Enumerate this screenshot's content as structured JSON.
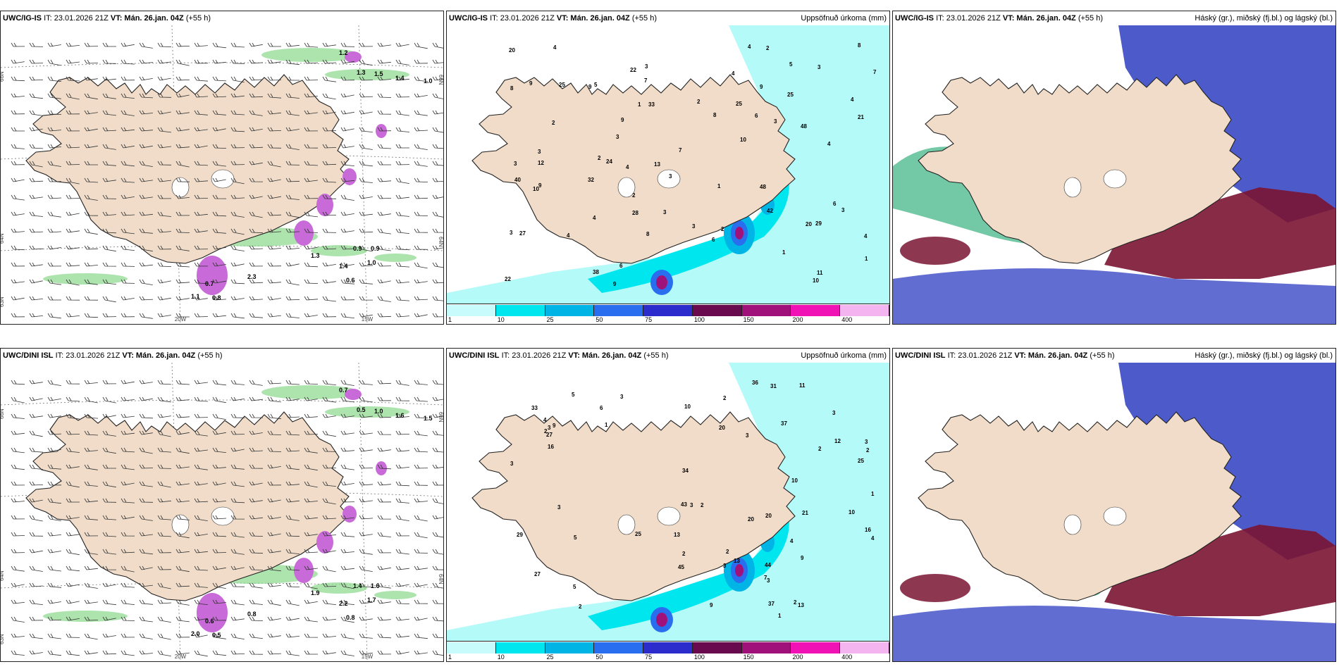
{
  "rows": [
    {
      "model": "UWC/IG-IS",
      "it_label": "IT: 23.01.2026 21Z",
      "vt_label": "VT: Mán. 26.jan. 04Z",
      "lead": "(+55 h)",
      "panels": {
        "wind": {
          "lat_labels": [
            "66N",
            "64N",
            "63N"
          ],
          "lat_labels_right": [
            "66N",
            "64N"
          ],
          "lon_labels": [
            "20W",
            "15W"
          ],
          "values": [
            "1.2",
            "1.3",
            "1.5",
            "1.4",
            "1.0",
            "0.9",
            "0.9",
            "1.0",
            "1.3",
            "1.4",
            "0.6",
            "0.8",
            "0.7",
            "2.3",
            "1.1"
          ]
        },
        "precip": {
          "title": "Uppsöfnuð úrkoma (mm)",
          "values": [
            "3",
            "3",
            "3",
            "3",
            "3",
            "5",
            "4",
            "4",
            "3",
            "3",
            "4",
            "8",
            "4",
            "1",
            "2",
            "3",
            "3",
            "2",
            "22",
            "25",
            "38",
            "4",
            "10",
            "3",
            "4",
            "1",
            "4",
            "8",
            "9",
            "20",
            "32",
            "4",
            "2",
            "12",
            "40",
            "42",
            "21",
            "6",
            "2",
            "2",
            "3",
            "2",
            "1",
            "9",
            "6",
            "48",
            "33",
            "6",
            "8",
            "9",
            "10",
            "25",
            "28",
            "6",
            "8",
            "20",
            "29",
            "48",
            "27",
            "7",
            "7",
            "7",
            "1",
            "5",
            "25",
            "24",
            "22",
            "9",
            "9",
            "9",
            "4",
            "10",
            "11",
            "13"
          ]
        },
        "cloud": {
          "title": "Háský (gr.), miðský (fj.bl.) og lágský (bl.)"
        }
      }
    },
    {
      "model": "UWC/DINI ISL",
      "it_label": "IT: 23.01.2026 21Z",
      "vt_label": "VT: Mán. 26.jan. 04Z",
      "lead": "(+55 h)",
      "panels": {
        "wind": {
          "lat_labels": [
            "66N",
            "64N",
            "63N"
          ],
          "lat_labels_right": [
            "66N",
            "64N"
          ],
          "lon_labels": [
            "20W",
            "15W"
          ],
          "values": [
            "0.7",
            "0.5",
            "1.0",
            "1.6",
            "1.5",
            "1.4",
            "1.6",
            "1.7",
            "1.9",
            "2.2",
            "0.8",
            "0.5",
            "0.6",
            "0.8",
            "2.0"
          ]
        },
        "precip": {
          "title": "Uppsöfnuð úrkoma (mm)",
          "values": [
            "2",
            "2",
            "1",
            "2",
            "3",
            "3",
            "2",
            "4",
            "3",
            "3",
            "5",
            "2",
            "2",
            "3",
            "3",
            "3",
            "3",
            "1",
            "25",
            "20",
            "44",
            "43",
            "33",
            "5",
            "3",
            "2",
            "4",
            "3",
            "9",
            "13",
            "36",
            "34",
            "20",
            "37",
            "10",
            "45",
            "16",
            "2",
            "11",
            "10",
            "21",
            "12",
            "13",
            "2",
            "27",
            "25",
            "37",
            "31",
            "9",
            "29",
            "27",
            "16",
            "4",
            "13",
            "20",
            "10",
            "9",
            "1",
            "5",
            "6",
            "7"
          ]
        },
        "cloud": {
          "title": "Háský (gr.), miðský (fj.bl.) og lágský (bl.)"
        }
      }
    }
  ],
  "colorbar": {
    "labels": [
      "1",
      "10",
      "25",
      "50",
      "75",
      "100",
      "150",
      "200",
      "400"
    ],
    "colors": [
      "#c8fcfc",
      "#00e6ee",
      "#00b4e6",
      "#2a6ef0",
      "#2c2ccc",
      "#6a0a4e",
      "#a0127a",
      "#f012b4",
      "#f4b4f0"
    ]
  },
  "colors": {
    "land": "#f0dcc8",
    "sea_precip": "#b4faf8",
    "high_cloud": "#38b080",
    "mid_cloud": "#3a48c4",
    "low_cloud": "#7a1432",
    "wind_precip": "#c86ad8",
    "wind_green": "#8ad88a"
  }
}
